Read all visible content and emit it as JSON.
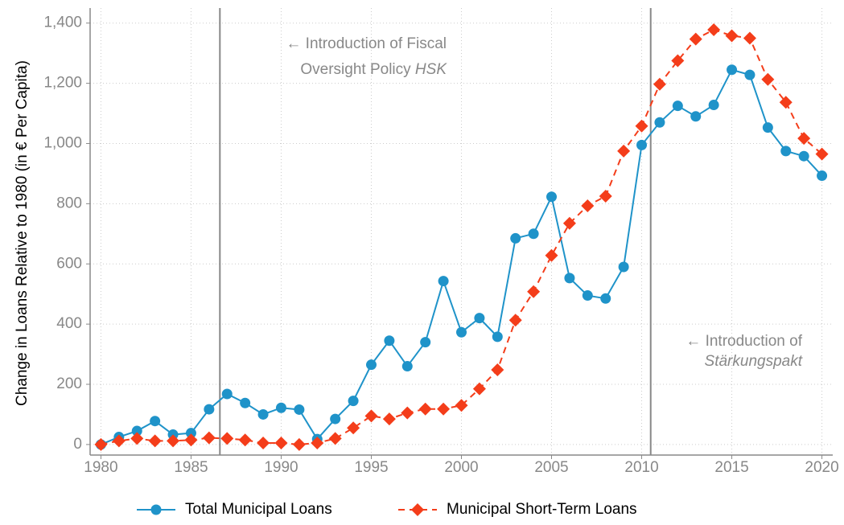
{
  "chart_data": {
    "type": "line",
    "y_label": "Change in Loans Relative to 1980 (in € Per Capita)",
    "x": [
      1980,
      1981,
      1982,
      1983,
      1984,
      1985,
      1986,
      1987,
      1988,
      1989,
      1990,
      1991,
      1992,
      1993,
      1994,
      1995,
      1996,
      1997,
      1998,
      1999,
      2000,
      2001,
      2002,
      2003,
      2004,
      2005,
      2006,
      2007,
      2008,
      2009,
      2010,
      2011,
      2012,
      2013,
      2014,
      2015,
      2016,
      2017,
      2018,
      2019,
      2020
    ],
    "series": [
      {
        "name": "Total Municipal Loans",
        "color": "#1f93c9",
        "marker": "circle",
        "dash": false,
        "values": [
          0,
          25,
          45,
          78,
          33,
          38,
          117,
          168,
          138,
          100,
          122,
          116,
          18,
          85,
          145,
          265,
          345,
          260,
          340,
          543,
          373,
          420,
          358,
          685,
          700,
          823,
          553,
          495,
          485,
          590,
          995,
          1070,
          1125,
          1090,
          1128,
          1245,
          1228,
          1053,
          975,
          958,
          893
        ]
      },
      {
        "name": "Municipal Short-Term Loans",
        "color": "#f43d1a",
        "marker": "diamond",
        "dash": true,
        "values": [
          0,
          12,
          20,
          12,
          12,
          15,
          22,
          20,
          15,
          5,
          5,
          0,
          5,
          20,
          55,
          95,
          85,
          105,
          118,
          118,
          130,
          185,
          248,
          413,
          508,
          628,
          735,
          793,
          825,
          975,
          1058,
          1197,
          1275,
          1347,
          1378,
          1358,
          1350,
          1213,
          1137,
          1017,
          965
        ]
      }
    ],
    "xlim": [
      1979.4,
      2020.6
    ],
    "xticks": [
      1980,
      1985,
      1990,
      1995,
      2000,
      2005,
      2010,
      2015,
      2020
    ],
    "ylim": [
      -35,
      1450
    ],
    "yticks": [
      0,
      200,
      400,
      600,
      800,
      {
        "value": 1000,
        "label": "1,000"
      },
      {
        "value": 1200,
        "label": "1,200"
      },
      {
        "value": 1400,
        "label": "1,400"
      }
    ],
    "grid": true,
    "vlines": [
      1986.6,
      2010.5
    ],
    "annotations": [
      {
        "lines": [
          [
            "← Introduction of Fiscal"
          ],
          [
            "Oversight Policy ",
            {
              "text": "HSK",
              "italic": true
            }
          ]
        ]
      },
      {
        "lines": [
          [
            "← Introduction of"
          ],
          [
            {
              "text": "Stärkungspakt",
              "italic": true
            }
          ]
        ]
      }
    ]
  }
}
